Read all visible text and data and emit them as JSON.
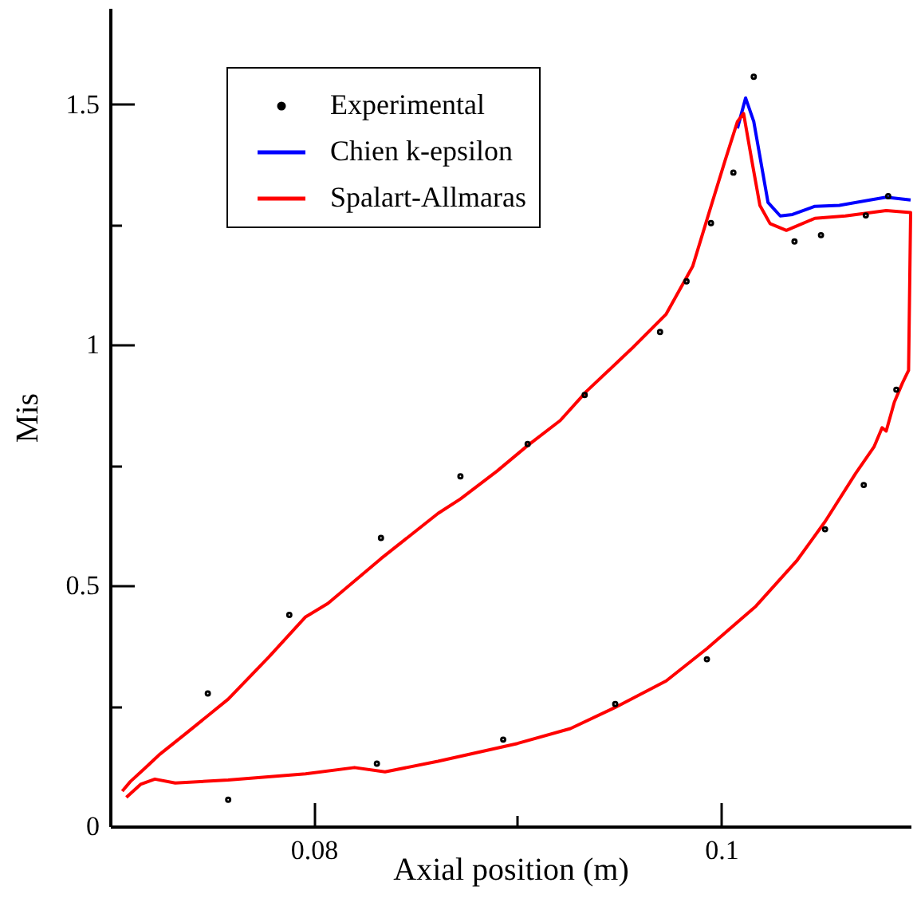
{
  "chart_data": {
    "type": "line",
    "xlabel": "Axial position (m)",
    "ylabel": "Mis",
    "xlim": [
      0.07,
      0.1093
    ],
    "ylim": [
      0,
      1.7
    ],
    "xticks": [
      0.08,
      {
        "value": 0.09,
        "label": null
      },
      0.1
    ],
    "yticks": [
      0,
      {
        "value": 0.25,
        "label": null
      },
      0.5,
      {
        "value": 0.75,
        "label": null
      },
      1,
      {
        "value": 1.25,
        "label": null
      },
      1.5
    ],
    "grid": false,
    "legend": "top left",
    "line_style": "solid",
    "series": [
      {
        "name": "Experimental",
        "type": "scatter",
        "marker": "circle",
        "color": "#000000",
        "x": [
          0.0748,
          0.0758,
          0.0788,
          0.0833,
          0.0831,
          0.0872,
          0.0893,
          0.0905,
          0.0933,
          0.0948,
          0.097,
          0.0983,
          0.0993,
          0.0995,
          0.1006,
          0.1016,
          0.1036,
          0.1049,
          0.1051,
          0.107,
          0.1071,
          0.1082,
          0.1086
        ],
        "values": [
          0.276,
          0.055,
          0.439,
          0.599,
          0.13,
          0.727,
          0.18,
          0.794,
          0.896,
          0.254,
          1.027,
          1.132,
          0.347,
          1.253,
          1.358,
          1.557,
          1.215,
          1.228,
          0.617,
          0.709,
          1.269,
          1.309,
          0.907
        ]
      },
      {
        "name": "Chien k-epsilon",
        "type": "line",
        "color": "#0000ff",
        "x": [
          0.1093,
          0.1081,
          0.1058,
          0.1046,
          0.1035,
          0.1029,
          0.1023,
          0.1016,
          0.1012,
          0.1008
        ],
        "values": [
          1.301,
          1.307,
          1.29,
          1.288,
          1.271,
          1.268,
          1.296,
          1.464,
          1.513,
          1.45
        ]
      },
      {
        "name": "Spalart-Allmaras",
        "type": "line",
        "color": "#ff0000",
        "x": [
          0.0708,
          0.0715,
          0.0722,
          0.0732,
          0.0758,
          0.0796,
          0.082,
          0.0835,
          0.0861,
          0.09,
          0.0926,
          0.0948,
          0.0973,
          0.0993,
          0.1017,
          0.1037,
          0.1051,
          0.1066,
          0.1075,
          0.1079,
          0.1081,
          0.1085,
          0.1089,
          0.1092,
          0.1093,
          0.1081,
          0.1061,
          0.1046,
          0.1032,
          0.1024,
          0.1019,
          0.1015,
          0.1011,
          0.1008,
          0.1002,
          0.0994,
          0.0986,
          0.0973,
          0.0956,
          0.0934,
          0.0921,
          0.0905,
          0.089,
          0.0872,
          0.0861,
          0.0833,
          0.0807,
          0.0796,
          0.0778,
          0.0758,
          0.0737,
          0.0724,
          0.0717,
          0.071,
          0.0706
        ],
        "values": [
          0.06,
          0.087,
          0.098,
          0.09,
          0.096,
          0.109,
          0.122,
          0.113,
          0.135,
          0.172,
          0.203,
          0.247,
          0.302,
          0.369,
          0.457,
          0.551,
          0.633,
          0.733,
          0.788,
          0.828,
          0.821,
          0.881,
          0.921,
          0.947,
          1.275,
          1.279,
          1.268,
          1.263,
          1.238,
          1.252,
          1.29,
          1.384,
          1.481,
          1.464,
          1.384,
          1.274,
          1.163,
          1.064,
          0.992,
          0.904,
          0.843,
          0.791,
          0.738,
          0.68,
          0.65,
          0.556,
          0.463,
          0.435,
          0.352,
          0.264,
          0.192,
          0.148,
          0.12,
          0.093,
          0.073
        ]
      }
    ]
  }
}
